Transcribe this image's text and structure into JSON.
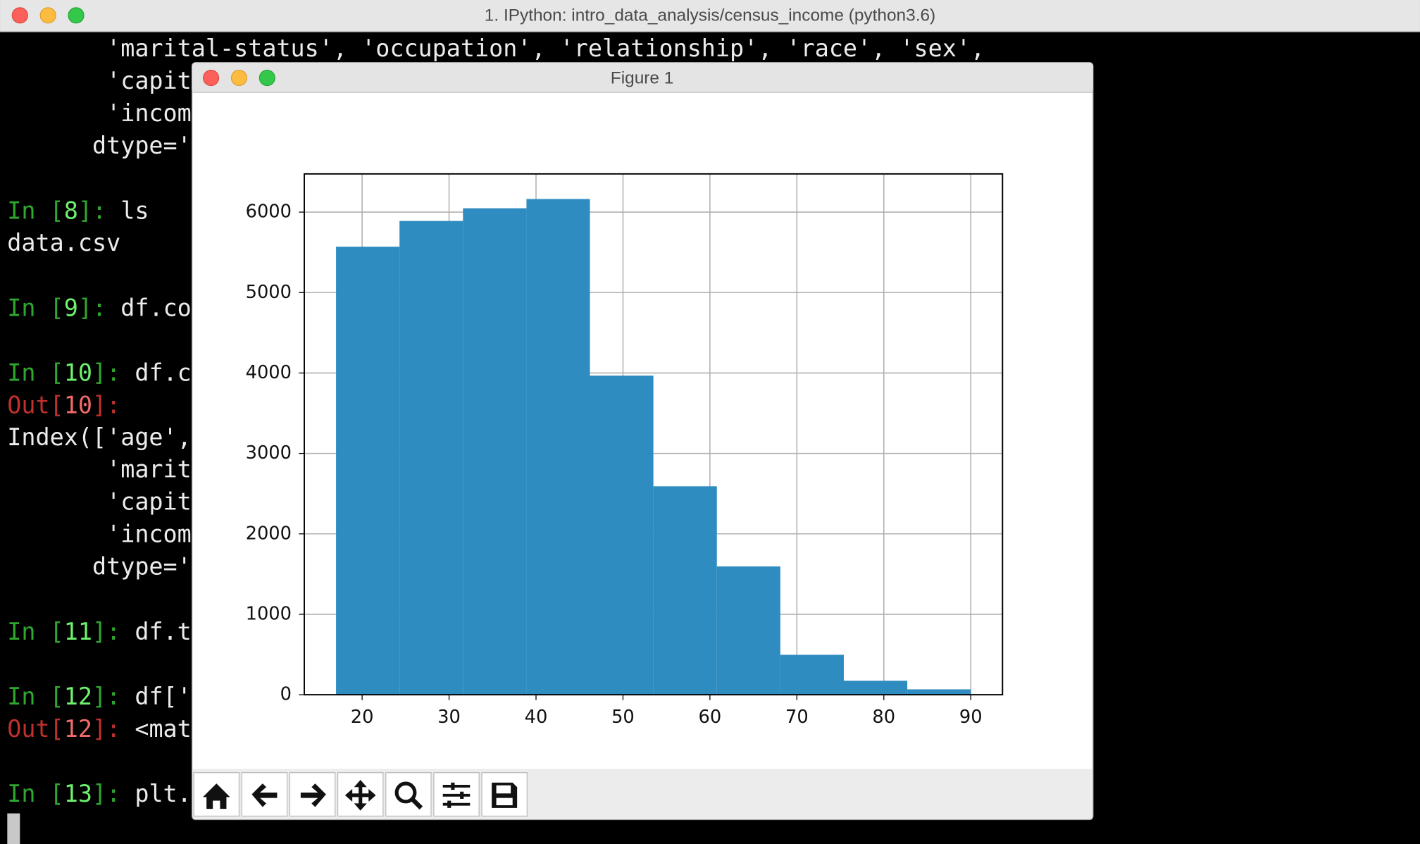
{
  "window_title": "1. IPython: intro_data_analysis/census_income (python3.6)",
  "terminal": {
    "prompt_color": "#2fa82f",
    "number_color": "#6df26d",
    "out_color": "#c0312e",
    "out_number_color": "#f26a6a",
    "lines": [
      "       'marital-status', 'occupation', 'relationship', 'race', 'sex',",
      "       'capit",
      "       'incom",
      "      dtype='",
      null,
      {
        "prompt": "In [",
        "number": "8",
        "close": "]: ",
        "code": "ls"
      },
      "data.csv",
      null,
      {
        "prompt": "In [",
        "number": "9",
        "close": "]: ",
        "code": "df.co"
      },
      null,
      {
        "prompt": "In [",
        "number": "10",
        "close": "]: ",
        "code": "df.c"
      },
      {
        "prompt": "Out[",
        "number": "10",
        "close": "]:"
      },
      "Index(['age',",
      "       'marit",
      "       'capit",
      "       'incom",
      "      dtype='",
      null,
      {
        "prompt": "In [",
        "number": "11",
        "close": "]: ",
        "code": "df.t"
      },
      null,
      {
        "prompt": "In [",
        "number": "12",
        "close": "]: ",
        "code": "df['"
      },
      {
        "prompt": "Out[",
        "number": "12",
        "close": "]: ",
        "code": "<mat"
      },
      null,
      {
        "prompt": "In [",
        "number": "13",
        "close": "]: ",
        "code": "plt."
      }
    ]
  },
  "figure_title": "Figure 1",
  "chart_data": {
    "type": "histogram",
    "bins": [
      17,
      24.3,
      31.6,
      38.9,
      46.2,
      53.5,
      60.8,
      68.1,
      75.4,
      82.7,
      90
    ],
    "values": [
      5570,
      5890,
      6048,
      6163,
      3967,
      2591,
      1595,
      496,
      174,
      67
    ],
    "color": "#2e8cc0",
    "xlim": [
      13.35,
      93.65
    ],
    "xticks": [
      20,
      30,
      40,
      50,
      60,
      70,
      80,
      90
    ],
    "ylim": [
      0,
      6475
    ],
    "yticks": [
      0,
      1000,
      2000,
      3000,
      4000,
      5000,
      6000
    ],
    "grid": true
  }
}
